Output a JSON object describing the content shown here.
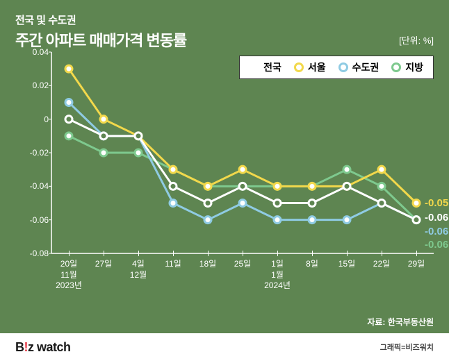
{
  "header": {
    "subtitle": "전국 및 수도권",
    "title": "주간 아파트 매매가격 변동률",
    "unit": "[단위: %]"
  },
  "legend": [
    {
      "name": "전국",
      "color": "#ffffff"
    },
    {
      "name": "서울",
      "color": "#f2d84b"
    },
    {
      "name": "수도권",
      "color": "#8fcbe3"
    },
    {
      "name": "지방",
      "color": "#7ec98e"
    }
  ],
  "chart": {
    "type": "line",
    "background_color": "#5e8551",
    "axis_color": "#ffffff",
    "line_width": 3,
    "marker_size": 5,
    "marker_style": "circle-open",
    "ylim": [
      -0.08,
      0.04
    ],
    "ytick_step": 0.02,
    "yticks": [
      0.04,
      0.02,
      0,
      -0.02,
      -0.04,
      -0.06,
      -0.08
    ],
    "x_labels": [
      "20일\n11월\n2023년",
      "27일",
      "4일\n12월",
      "11일",
      "18일",
      "25일",
      "1일\n1월\n2024년",
      "8일",
      "15일",
      "22일",
      "29일"
    ],
    "series": {
      "nationwide": {
        "color": "#ffffff",
        "values": [
          0.0,
          -0.01,
          -0.01,
          -0.04,
          -0.05,
          -0.04,
          -0.05,
          -0.05,
          -0.04,
          -0.05,
          -0.06
        ],
        "end_label": "-0.06"
      },
      "seoul": {
        "color": "#f2d84b",
        "values": [
          0.03,
          0.0,
          -0.01,
          -0.03,
          -0.04,
          -0.03,
          -0.04,
          -0.04,
          -0.04,
          -0.03,
          -0.05
        ],
        "end_label": "-0.05"
      },
      "capital": {
        "color": "#8fcbe3",
        "values": [
          0.01,
          -0.01,
          -0.01,
          -0.05,
          -0.06,
          -0.05,
          -0.06,
          -0.06,
          -0.06,
          -0.05,
          -0.06
        ],
        "end_label": "-0.06"
      },
      "province": {
        "color": "#7ec98e",
        "values": [
          -0.01,
          -0.02,
          -0.02,
          -0.03,
          -0.04,
          -0.04,
          -0.04,
          -0.04,
          -0.03,
          -0.04,
          -0.06
        ],
        "end_label": "-0.06"
      }
    },
    "end_label_colors": {
      "nationwide": "#ffffff",
      "seoul": "#f2d84b",
      "capital": "#8fcbe3",
      "province": "#7ec98e"
    },
    "end_label_positions_y": {
      "seoul": -0.05,
      "nationwide": -0.059,
      "capital": -0.067,
      "province": -0.075
    }
  },
  "source": "자료: 한국부동산원",
  "footer": {
    "brand_prefix": "B",
    "brand_ex": "!",
    "brand_suffix": "z watch",
    "credit": "그래픽=비즈워치"
  }
}
